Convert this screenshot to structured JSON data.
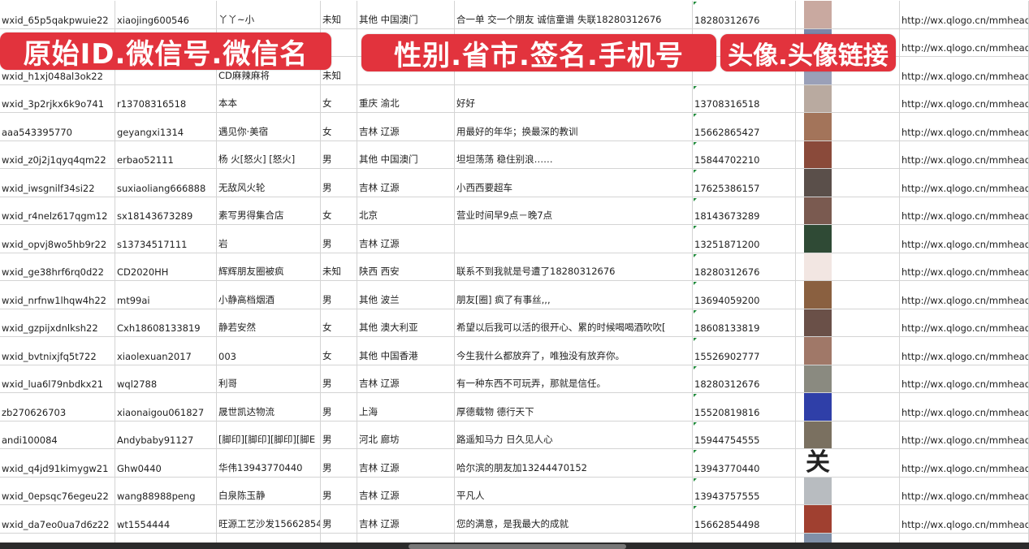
{
  "banners": [
    "原始ID.微信号.微信名",
    "性别.省市.签名.手机号",
    "头像.头像链接"
  ],
  "colors": {
    "banner": "#e2333d",
    "grid": "#d4d4d4",
    "number_flag": "#1f8a3a"
  },
  "rows": [
    {
      "id": "wxid_65p5qakpwuie22",
      "wechat": "xiaojing600546",
      "name": "丫丫~小",
      "gender": "未知",
      "region": "其他 中国澳门",
      "signature": "合一单 交一个朋友 诚信童谱 失联18280312676",
      "phone": "18280312676",
      "avatar": "#c9a9a0",
      "link": "http://wx.qlogo.cn/mmhead"
    },
    {
      "id": "",
      "wechat": "",
      "name": "",
      "gender": "",
      "region": "",
      "signature": "",
      "phone": "",
      "avatar": "#7d86a8",
      "link": "http://wx.qlogo.cn/mmhead"
    },
    {
      "id": "wxid_h1xj048al3ok22",
      "wechat": "",
      "name": "CD麻辣麻将",
      "gender": "未知",
      "region": "",
      "signature": "",
      "phone": "",
      "avatar": "#9aa0b8",
      "link": "http://wx.qlogo.cn/mmhead"
    },
    {
      "id": "wxid_3p2rjkx6k9o741",
      "wechat": "r13708316518",
      "name": "本本",
      "gender": "女",
      "region": "重庆 渝北",
      "signature": "好好",
      "phone": "13708316518",
      "avatar": "#b9aaa0",
      "link": "http://wx.qlogo.cn/mmhead"
    },
    {
      "id": "aaa543395770",
      "wechat": "geyangxi1314",
      "name": "遇见你·美宿",
      "gender": "女",
      "region": "吉林 辽源",
      "signature": "用最好的年华；换最深的教训",
      "phone": "15662865427",
      "avatar": "#a3745a",
      "link": "http://wx.qlogo.cn/mmhead"
    },
    {
      "id": "wxid_z0j2j1qyq4qm22",
      "wechat": "erbao52111",
      "name": "杨 火[怒火] [怒火]",
      "gender": "男",
      "region": "其他 中国澳门",
      "signature": "坦坦荡荡 稳住别浪……",
      "phone": "15844702210",
      "avatar": "#8a4a3a",
      "link": "http://wx.qlogo.cn/mmhead"
    },
    {
      "id": "wxid_iwsgnilf34si22",
      "wechat": "suxiaoliang666888",
      "name": "无敌风火轮",
      "gender": "男",
      "region": "吉林 辽源",
      "signature": "小西西要超车",
      "phone": "17625386157",
      "avatar": "#5a4f4a",
      "link": "http://wx.qlogo.cn/mmhead"
    },
    {
      "id": "wxid_r4nelz617qgm12",
      "wechat": "sx18143673289",
      "name": "素写男得集合店",
      "gender": "女",
      "region": "北京",
      "signature": "营业时间早9点－晚7点",
      "phone": "18143673289",
      "avatar": "#7a5a50",
      "link": "http://wx.qlogo.cn/mmhead"
    },
    {
      "id": "wxid_opvj8wo5hb9r22",
      "wechat": "s13734517111",
      "name": "岩",
      "gender": "男",
      "region": "吉林 辽源",
      "signature": "",
      "phone": "13251871200",
      "avatar": "#2f4a35",
      "link": "http://wx.qlogo.cn/mmhead"
    },
    {
      "id": "wxid_ge38hrf6rq0d22",
      "wechat": "CD2020HH",
      "name": "辉辉朋友圈被疯",
      "gender": "未知",
      "region": "陕西 西安",
      "signature": "联系不到我就是号遭了18280312676",
      "phone": "18280312676",
      "avatar": "#f2e6e2",
      "link": "http://wx.qlogo.cn/mmhead"
    },
    {
      "id": "wxid_nrfnw1lhqw4h22",
      "wechat": "mt99ai",
      "name": "小静高档烟酒",
      "gender": "男",
      "region": "其他 波兰",
      "signature": "朋友[圈] 疯了有事丝,,,",
      "phone": "13694059200",
      "avatar": "#8a6040",
      "link": "http://wx.qlogo.cn/mmhead"
    },
    {
      "id": "wxid_gzpijxdnlksh22",
      "wechat": "Cxh18608133819",
      "name": "静若安然",
      "gender": "女",
      "region": "其他 澳大利亚",
      "signature": "希望以后我可以活的很开心、累的时候喝喝酒吹吹[",
      "phone": "18608133819",
      "avatar": "#6a5048",
      "link": "http://wx.qlogo.cn/mmhead"
    },
    {
      "id": "wxid_bvtnixjfq5t722",
      "wechat": "xiaolexuan2017",
      "name": "003",
      "gender": "女",
      "region": "其他 中国香港",
      "signature": "今生我什么都放弃了，唯独没有放弃你。",
      "phone": "15526902777",
      "avatar": "#a07868",
      "link": "http://wx.qlogo.cn/mmhead"
    },
    {
      "id": "wxid_lua6l79nbdkx21",
      "wechat": "wql2788",
      "name": "利哥",
      "gender": "男",
      "region": "吉林 辽源",
      "signature": "有一种东西不可玩弄，那就是信任。",
      "phone": "18280312676",
      "avatar": "#8a8a80",
      "link": "http://wx.qlogo.cn/mmhead"
    },
    {
      "id": "zb270626703",
      "wechat": "xiaonaigou061827",
      "name": "晟世凯达物流",
      "gender": "男",
      "region": "上海",
      "signature": "厚德载物 德行天下",
      "phone": "15520819816",
      "avatar": "#2f3fa8",
      "link": "http://wx.qlogo.cn/mmhead"
    },
    {
      "id": "andi100084",
      "wechat": "Andybaby91127",
      "name": "[脚印][脚印][脚印][脚E",
      "gender": "男",
      "region": "河北 廊坊",
      "signature": "路遥知马力 日久见人心",
      "phone": "15944754555",
      "avatar": "#7a7060",
      "link": "http://wx.qlogo.cn/mmhead"
    },
    {
      "id": "wxid_q4jd91kimygw21",
      "wechat": "Ghw0440",
      "name": "华伟13943770440",
      "gender": "男",
      "region": "吉林 辽源",
      "signature": "哈尔滨的朋友加13244470152",
      "phone": "13943770440",
      "avatar": "#ffffff",
      "avatar_glyph": "关",
      "link": "http://wx.qlogo.cn/mmhead"
    },
    {
      "id": "wxid_0epsqc76egeu22",
      "wechat": "wang88988peng",
      "name": "白泉陈玉静",
      "gender": "男",
      "region": "吉林 辽源",
      "signature": "平凡人",
      "phone": "13943757555",
      "avatar": "#b8bcc0",
      "link": "http://wx.qlogo.cn/mmhead"
    },
    {
      "id": "wxid_da7eo0ua7d6z22",
      "wechat": "wt1554444",
      "name": "旺源工艺沙发15662854",
      "gender": "男",
      "region": "吉林 辽源",
      "signature": "您的满意，是我最大的成就",
      "phone": "15662854498",
      "avatar": "#a04030",
      "link": "http://wx.qlogo.cn/mmhead"
    },
    {
      "id": "",
      "wechat": "",
      "name": "",
      "gender": "",
      "region": "",
      "signature": "",
      "phone": "",
      "avatar": "#8090a8",
      "link": ""
    }
  ]
}
